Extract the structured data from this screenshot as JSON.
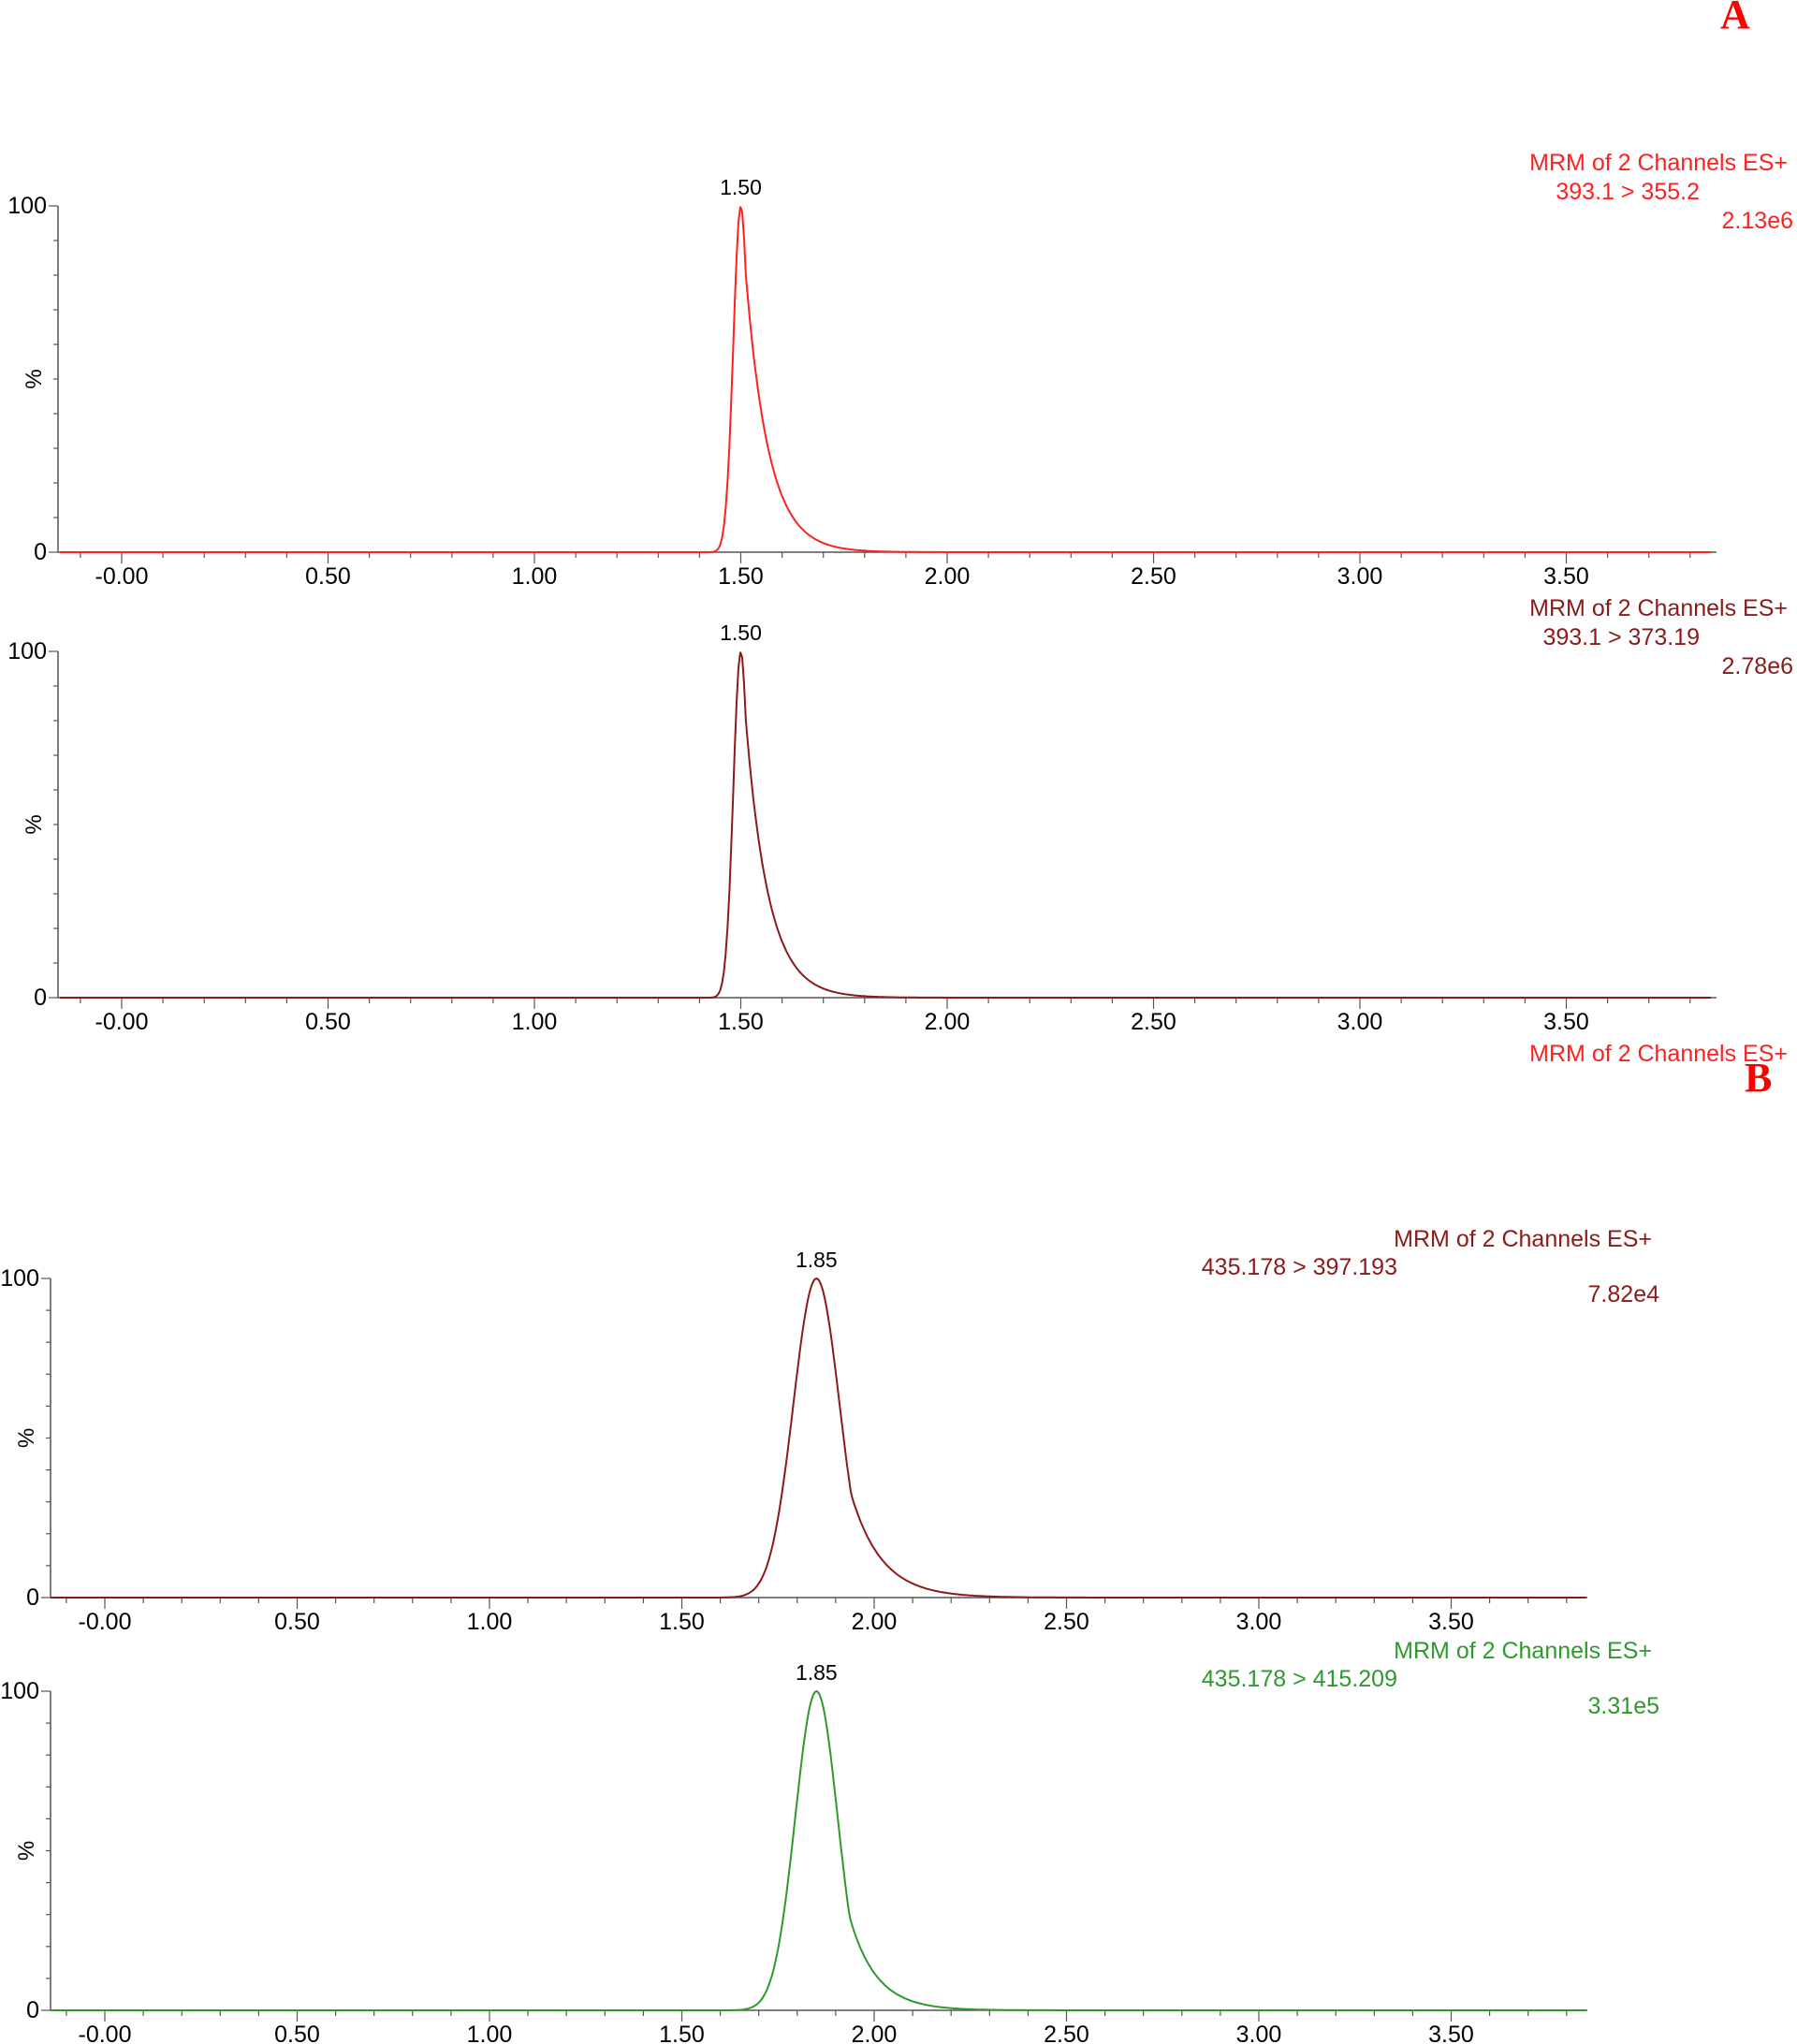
{
  "panel_letters": {
    "a": "A",
    "b": "B"
  },
  "chart_data": [
    {
      "type": "line",
      "panel": "A",
      "info_lines": [
        "MRM of 2 Channels ES+",
        "393.1 > 355.2",
        "2.13e6"
      ],
      "color": "#ff2020",
      "xlim": [
        -0.15,
        3.85
      ],
      "ylim": [
        0,
        100
      ],
      "x_ticks": [
        "-0.00",
        "0.50",
        "1.00",
        "1.50",
        "2.00",
        "2.50",
        "3.00",
        "3.50"
      ],
      "y_ticks": [
        "0",
        "100"
      ],
      "ylabel": "%",
      "peak": {
        "rt": 1.5,
        "label": "1.50",
        "sigma_left": 0.018,
        "tau_right": 0.055
      },
      "grid": false
    },
    {
      "type": "line",
      "panel": "A",
      "info_lines": [
        "MRM of 2 Channels ES+",
        "393.1 > 373.19",
        "2.78e6"
      ],
      "color": "#8b1a1a",
      "xlim": [
        -0.15,
        3.85
      ],
      "ylim": [
        0,
        100
      ],
      "x_ticks": [
        "-0.00",
        "0.50",
        "1.00",
        "1.50",
        "2.00",
        "2.50",
        "3.00",
        "3.50"
      ],
      "y_ticks": [
        "0",
        "100"
      ],
      "ylabel": "%",
      "peak": {
        "rt": 1.5,
        "label": "1.50",
        "sigma_left": 0.018,
        "tau_right": 0.055
      },
      "grid": false
    },
    {
      "type": "line",
      "panel": "A",
      "info_lines": [
        "MRM of 2 Channels ES+"
      ],
      "color": "#ff2020"
    },
    {
      "type": "line",
      "panel": "B",
      "info_lines": [
        "MRM of 2 Channels ES+",
        "435.178 > 397.193",
        "7.82e4"
      ],
      "color": "#8b1a1a",
      "xlim": [
        -0.15,
        3.85
      ],
      "ylim": [
        0,
        100
      ],
      "x_ticks": [
        "-0.00",
        "0.50",
        "1.00",
        "1.50",
        "2.00",
        "2.50",
        "3.00",
        "3.50"
      ],
      "y_ticks": [
        "0",
        "100"
      ],
      "ylabel": "%",
      "peak": {
        "rt": 1.85,
        "label": "1.85",
        "sigma_left": 0.06,
        "tau_right": 0.08
      },
      "grid": false
    },
    {
      "type": "line",
      "panel": "B",
      "info_lines": [
        "MRM of 2 Channels ES+",
        "435.178 > 415.209",
        "3.31e5"
      ],
      "color": "#2e9a2e",
      "xlim": [
        -0.15,
        3.85
      ],
      "ylim": [
        0,
        100
      ],
      "x_ticks": [
        "-0.00",
        "0.50",
        "1.00",
        "1.50",
        "2.00",
        "2.50",
        "3.00",
        "3.50"
      ],
      "y_ticks": [
        "0",
        "100"
      ],
      "ylabel": "%",
      "peak": {
        "rt": 1.85,
        "label": "1.85",
        "sigma_left": 0.055,
        "tau_right": 0.07
      },
      "grid": false
    }
  ]
}
